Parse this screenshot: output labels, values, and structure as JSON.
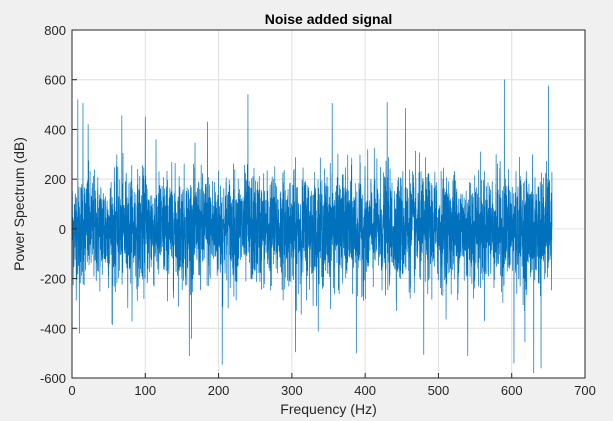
{
  "chart_data": {
    "type": "line",
    "title": "Noise added signal",
    "xlabel": "Frequency (Hz)",
    "ylabel": "Power Spectrum (dB)",
    "xlim": [
      0,
      700
    ],
    "ylim": [
      -600,
      800
    ],
    "x_ticks": [
      "0",
      "100",
      "200",
      "300",
      "400",
      "500",
      "600",
      "700"
    ],
    "y_ticks": [
      "-600",
      "-400",
      "-200",
      "0",
      "200",
      "400",
      "600",
      "800"
    ],
    "x_tick_values": [
      0,
      100,
      200,
      300,
      400,
      500,
      600,
      700
    ],
    "y_tick_values": [
      -600,
      -400,
      -200,
      0,
      200,
      400,
      600,
      800
    ],
    "grid": true,
    "series": [
      {
        "color": "#0072bd",
        "x_range": [
          0,
          655
        ],
        "approx_typical_envelope": [
          -230,
          230
        ],
        "approx_peaks": [
          {
            "x": 8,
            "y": 520
          },
          {
            "x": 15,
            "y": 505
          },
          {
            "x": 22,
            "y": 420
          },
          {
            "x": 68,
            "y": 455
          },
          {
            "x": 100,
            "y": 450
          },
          {
            "x": 185,
            "y": 430
          },
          {
            "x": 240,
            "y": 540
          },
          {
            "x": 355,
            "y": 505
          },
          {
            "x": 430,
            "y": 510
          },
          {
            "x": 455,
            "y": 485
          },
          {
            "x": 590,
            "y": 600
          },
          {
            "x": 640,
            "y": 520
          },
          {
            "x": 650,
            "y": 575
          }
        ],
        "approx_troughs": [
          {
            "x": 10,
            "y": -420
          },
          {
            "x": 55,
            "y": -385
          },
          {
            "x": 160,
            "y": -510
          },
          {
            "x": 205,
            "y": -545
          },
          {
            "x": 305,
            "y": -495
          },
          {
            "x": 388,
            "y": -500
          },
          {
            "x": 480,
            "y": -505
          },
          {
            "x": 540,
            "y": -510
          },
          {
            "x": 603,
            "y": -540
          },
          {
            "x": 618,
            "y": -455
          },
          {
            "x": 630,
            "y": -580
          },
          {
            "x": 640,
            "y": -560
          }
        ]
      }
    ]
  }
}
